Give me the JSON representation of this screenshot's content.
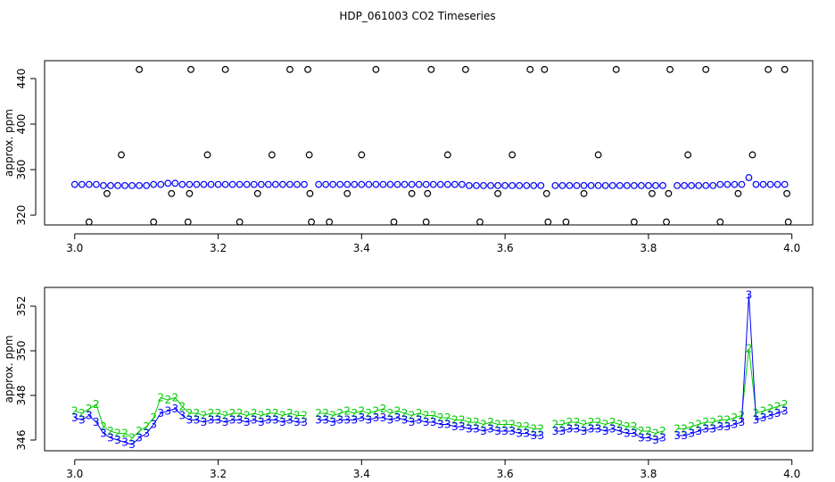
{
  "chart_data": [
    {
      "type": "scatter",
      "title": "HDP_061003  CO2 Timeseries",
      "ylabel": "approx. ppm",
      "xlim": [
        2.958,
        4.029
      ],
      "ylim": [
        311.4,
        455.7
      ],
      "xticks": [
        {
          "value": 3.0,
          "label": "3.0"
        },
        3.2,
        3.4,
        3.6,
        3.8,
        {
          "value": 4.0,
          "label": "4.0"
        }
      ],
      "yticks": [
        320,
        360,
        400,
        440
      ],
      "series": [
        {
          "color": "#0000ff",
          "marker": "circle",
          "line": "dotted",
          "line_color": "#999999",
          "x": [
            3.0,
            3.01,
            3.02,
            3.03,
            3.04,
            3.05,
            3.06,
            3.07,
            3.08,
            3.09,
            3.1,
            3.11,
            3.12,
            3.13,
            3.14,
            3.15,
            3.16,
            3.17,
            3.18,
            3.19,
            3.2,
            3.21,
            3.22,
            3.23,
            3.24,
            3.25,
            3.26,
            3.27,
            3.28,
            3.29,
            3.3,
            3.31,
            3.32,
            3.33,
            3.34,
            3.35,
            3.36,
            3.37,
            3.38,
            3.39,
            3.4,
            3.41,
            3.42,
            3.43,
            3.44,
            3.45,
            3.46,
            3.47,
            3.48,
            3.49,
            3.5,
            3.51,
            3.52,
            3.53,
            3.54,
            3.55,
            3.56,
            3.57,
            3.58,
            3.59,
            3.6,
            3.61,
            3.62,
            3.63,
            3.64,
            3.65,
            3.66,
            3.67,
            3.68,
            3.69,
            3.7,
            3.71,
            3.72,
            3.73,
            3.74,
            3.75,
            3.76,
            3.77,
            3.78,
            3.79,
            3.8,
            3.81,
            3.82,
            3.83,
            3.84,
            3.85,
            3.86,
            3.87,
            3.88,
            3.89,
            3.9,
            3.91,
            3.92,
            3.93,
            3.94,
            3.95,
            3.96,
            3.97,
            3.98,
            3.99
          ],
          "values": [
            347,
            347,
            347,
            347,
            346,
            346,
            346,
            346,
            346,
            346,
            346,
            347,
            347,
            348,
            348,
            347,
            347,
            347,
            347,
            347,
            347,
            347,
            347,
            347,
            347,
            347,
            347,
            347,
            347,
            347,
            347,
            347,
            347,
            null,
            347,
            347,
            347,
            347,
            347,
            347,
            347,
            347,
            347,
            347,
            347,
            347,
            347,
            347,
            347,
            347,
            347,
            347,
            347,
            347,
            347,
            346,
            346,
            346,
            346,
            346,
            346,
            346,
            346,
            346,
            346,
            346,
            null,
            346,
            346,
            346,
            346,
            346,
            346,
            346,
            346,
            346,
            346,
            346,
            346,
            346,
            346,
            346,
            346,
            null,
            346,
            346,
            346,
            346,
            346,
            346,
            347,
            347,
            347,
            347,
            353,
            347,
            347,
            347,
            347,
            347
          ]
        },
        {
          "color": "#000000",
          "marker": "circle",
          "x": [
            3.02,
            3.045,
            3.065,
            3.09,
            3.11,
            3.135,
            3.158,
            3.16,
            3.162,
            3.185,
            3.21,
            3.23,
            3.255,
            3.275,
            3.3,
            3.325,
            3.327,
            3.328,
            3.33,
            3.355,
            3.38,
            3.4,
            3.42,
            3.445,
            3.47,
            3.49,
            3.492,
            3.497,
            3.52,
            3.545,
            3.565,
            3.59,
            3.61,
            3.635,
            3.655,
            3.658,
            3.66,
            3.685,
            3.71,
            3.73,
            3.755,
            3.78,
            3.805,
            3.825,
            3.828,
            3.83,
            3.855,
            3.88,
            3.9,
            3.925,
            3.945,
            3.967,
            3.99,
            3.993,
            3.995
          ],
          "values": [
            314,
            339,
            373,
            448,
            314,
            339,
            314,
            339,
            448,
            373,
            448,
            314,
            339,
            373,
            448,
            448,
            373,
            339,
            314,
            314,
            339,
            373,
            448,
            314,
            339,
            314,
            339,
            448,
            373,
            448,
            314,
            339,
            373,
            448,
            448,
            339,
            314,
            314,
            339,
            373,
            448,
            314,
            339,
            314,
            339,
            448,
            373,
            448,
            314,
            339,
            373,
            448,
            448,
            339,
            314
          ]
        }
      ]
    },
    {
      "type": "scatter",
      "ylabel": "approx. ppm",
      "xlim": [
        2.958,
        4.029
      ],
      "ylim": [
        345.52,
        352.84
      ],
      "xticks": [
        {
          "value": 3.0,
          "label": "3.0"
        },
        3.2,
        3.4,
        3.6,
        3.8,
        {
          "value": 4.0,
          "label": "4.0"
        }
      ],
      "yticks": [
        346,
        348,
        350,
        352
      ],
      "series": [
        {
          "color": "#00cc00",
          "marker": "2",
          "line": "solid",
          "line_color": "#00cc00",
          "x": [
            3.0,
            3.01,
            3.02,
            3.03,
            3.04,
            3.05,
            3.06,
            3.07,
            3.08,
            3.09,
            3.1,
            3.11,
            3.12,
            3.13,
            3.14,
            3.15,
            3.16,
            3.17,
            3.18,
            3.19,
            3.2,
            3.21,
            3.22,
            3.23,
            3.24,
            3.25,
            3.26,
            3.27,
            3.28,
            3.29,
            3.3,
            3.31,
            3.32,
            3.33,
            3.34,
            3.35,
            3.36,
            3.37,
            3.38,
            3.39,
            3.4,
            3.41,
            3.42,
            3.43,
            3.44,
            3.45,
            3.46,
            3.47,
            3.48,
            3.49,
            3.5,
            3.51,
            3.52,
            3.53,
            3.54,
            3.55,
            3.56,
            3.57,
            3.58,
            3.59,
            3.6,
            3.61,
            3.62,
            3.63,
            3.64,
            3.65,
            3.66,
            3.67,
            3.68,
            3.69,
            3.7,
            3.71,
            3.72,
            3.73,
            3.74,
            3.75,
            3.76,
            3.77,
            3.78,
            3.79,
            3.8,
            3.81,
            3.82,
            3.83,
            3.84,
            3.85,
            3.86,
            3.87,
            3.88,
            3.89,
            3.9,
            3.91,
            3.92,
            3.93,
            3.94,
            3.95,
            3.96,
            3.97,
            3.98,
            3.99
          ],
          "values": [
            347.3,
            347.2,
            347.4,
            347.6,
            346.6,
            346.4,
            346.3,
            346.3,
            346.1,
            346.4,
            346.6,
            347.0,
            347.9,
            347.8,
            347.9,
            347.5,
            347.2,
            347.2,
            347.1,
            347.2,
            347.2,
            347.1,
            347.2,
            347.2,
            347.1,
            347.2,
            347.1,
            347.2,
            347.2,
            347.1,
            347.2,
            347.1,
            347.1,
            null,
            347.2,
            347.2,
            347.1,
            347.2,
            347.3,
            347.2,
            347.3,
            347.2,
            347.3,
            347.4,
            347.2,
            347.3,
            347.2,
            347.1,
            347.2,
            347.1,
            347.1,
            347.0,
            347.0,
            346.9,
            346.9,
            346.8,
            346.8,
            346.7,
            346.8,
            346.7,
            346.7,
            346.7,
            346.6,
            346.6,
            346.5,
            346.5,
            null,
            346.7,
            346.7,
            346.8,
            346.8,
            346.7,
            346.8,
            346.8,
            346.7,
            346.8,
            346.7,
            346.6,
            346.6,
            346.4,
            346.4,
            346.3,
            346.4,
            null,
            346.5,
            346.5,
            346.6,
            346.7,
            346.8,
            346.8,
            346.9,
            346.9,
            347.0,
            347.1,
            350.1,
            347.2,
            347.3,
            347.4,
            347.5,
            347.6
          ]
        },
        {
          "color": "#0000ff",
          "marker": "3",
          "line": "solid",
          "line_color": "#0000ff",
          "x": [
            3.0,
            3.01,
            3.02,
            3.03,
            3.04,
            3.05,
            3.06,
            3.07,
            3.08,
            3.09,
            3.1,
            3.11,
            3.12,
            3.13,
            3.14,
            3.15,
            3.16,
            3.17,
            3.18,
            3.19,
            3.2,
            3.21,
            3.22,
            3.23,
            3.24,
            3.25,
            3.26,
            3.27,
            3.28,
            3.29,
            3.3,
            3.31,
            3.32,
            3.33,
            3.34,
            3.35,
            3.36,
            3.37,
            3.38,
            3.39,
            3.4,
            3.41,
            3.42,
            3.43,
            3.44,
            3.45,
            3.46,
            3.47,
            3.48,
            3.49,
            3.5,
            3.51,
            3.52,
            3.53,
            3.54,
            3.55,
            3.56,
            3.57,
            3.58,
            3.59,
            3.6,
            3.61,
            3.62,
            3.63,
            3.64,
            3.65,
            3.66,
            3.67,
            3.68,
            3.69,
            3.7,
            3.71,
            3.72,
            3.73,
            3.74,
            3.75,
            3.76,
            3.77,
            3.78,
            3.79,
            3.8,
            3.81,
            3.82,
            3.83,
            3.84,
            3.85,
            3.86,
            3.87,
            3.88,
            3.89,
            3.9,
            3.91,
            3.92,
            3.93,
            3.94,
            3.95,
            3.96,
            3.97,
            3.98,
            3.99
          ],
          "values": [
            347.0,
            346.9,
            347.1,
            346.8,
            346.3,
            346.1,
            346.0,
            345.9,
            345.8,
            346.1,
            346.3,
            346.7,
            347.2,
            347.3,
            347.4,
            347.1,
            346.9,
            346.9,
            346.8,
            346.9,
            346.9,
            346.8,
            346.9,
            346.9,
            346.8,
            346.9,
            346.8,
            346.9,
            346.9,
            346.8,
            346.9,
            346.8,
            346.8,
            null,
            346.9,
            346.9,
            346.8,
            346.9,
            346.9,
            346.9,
            347.0,
            346.9,
            347.0,
            347.0,
            346.9,
            347.0,
            346.9,
            346.8,
            346.9,
            346.8,
            346.8,
            346.7,
            346.7,
            346.6,
            346.6,
            346.5,
            346.5,
            346.4,
            346.5,
            346.4,
            346.4,
            346.4,
            346.3,
            346.3,
            346.2,
            346.2,
            null,
            346.4,
            346.4,
            346.5,
            346.5,
            346.4,
            346.5,
            346.5,
            346.4,
            346.5,
            346.4,
            346.3,
            346.3,
            346.1,
            346.1,
            346.0,
            346.1,
            null,
            346.2,
            346.2,
            346.3,
            346.4,
            346.5,
            346.5,
            346.6,
            346.6,
            346.7,
            346.8,
            352.5,
            346.9,
            347.0,
            347.1,
            347.2,
            347.3
          ]
        }
      ]
    }
  ]
}
